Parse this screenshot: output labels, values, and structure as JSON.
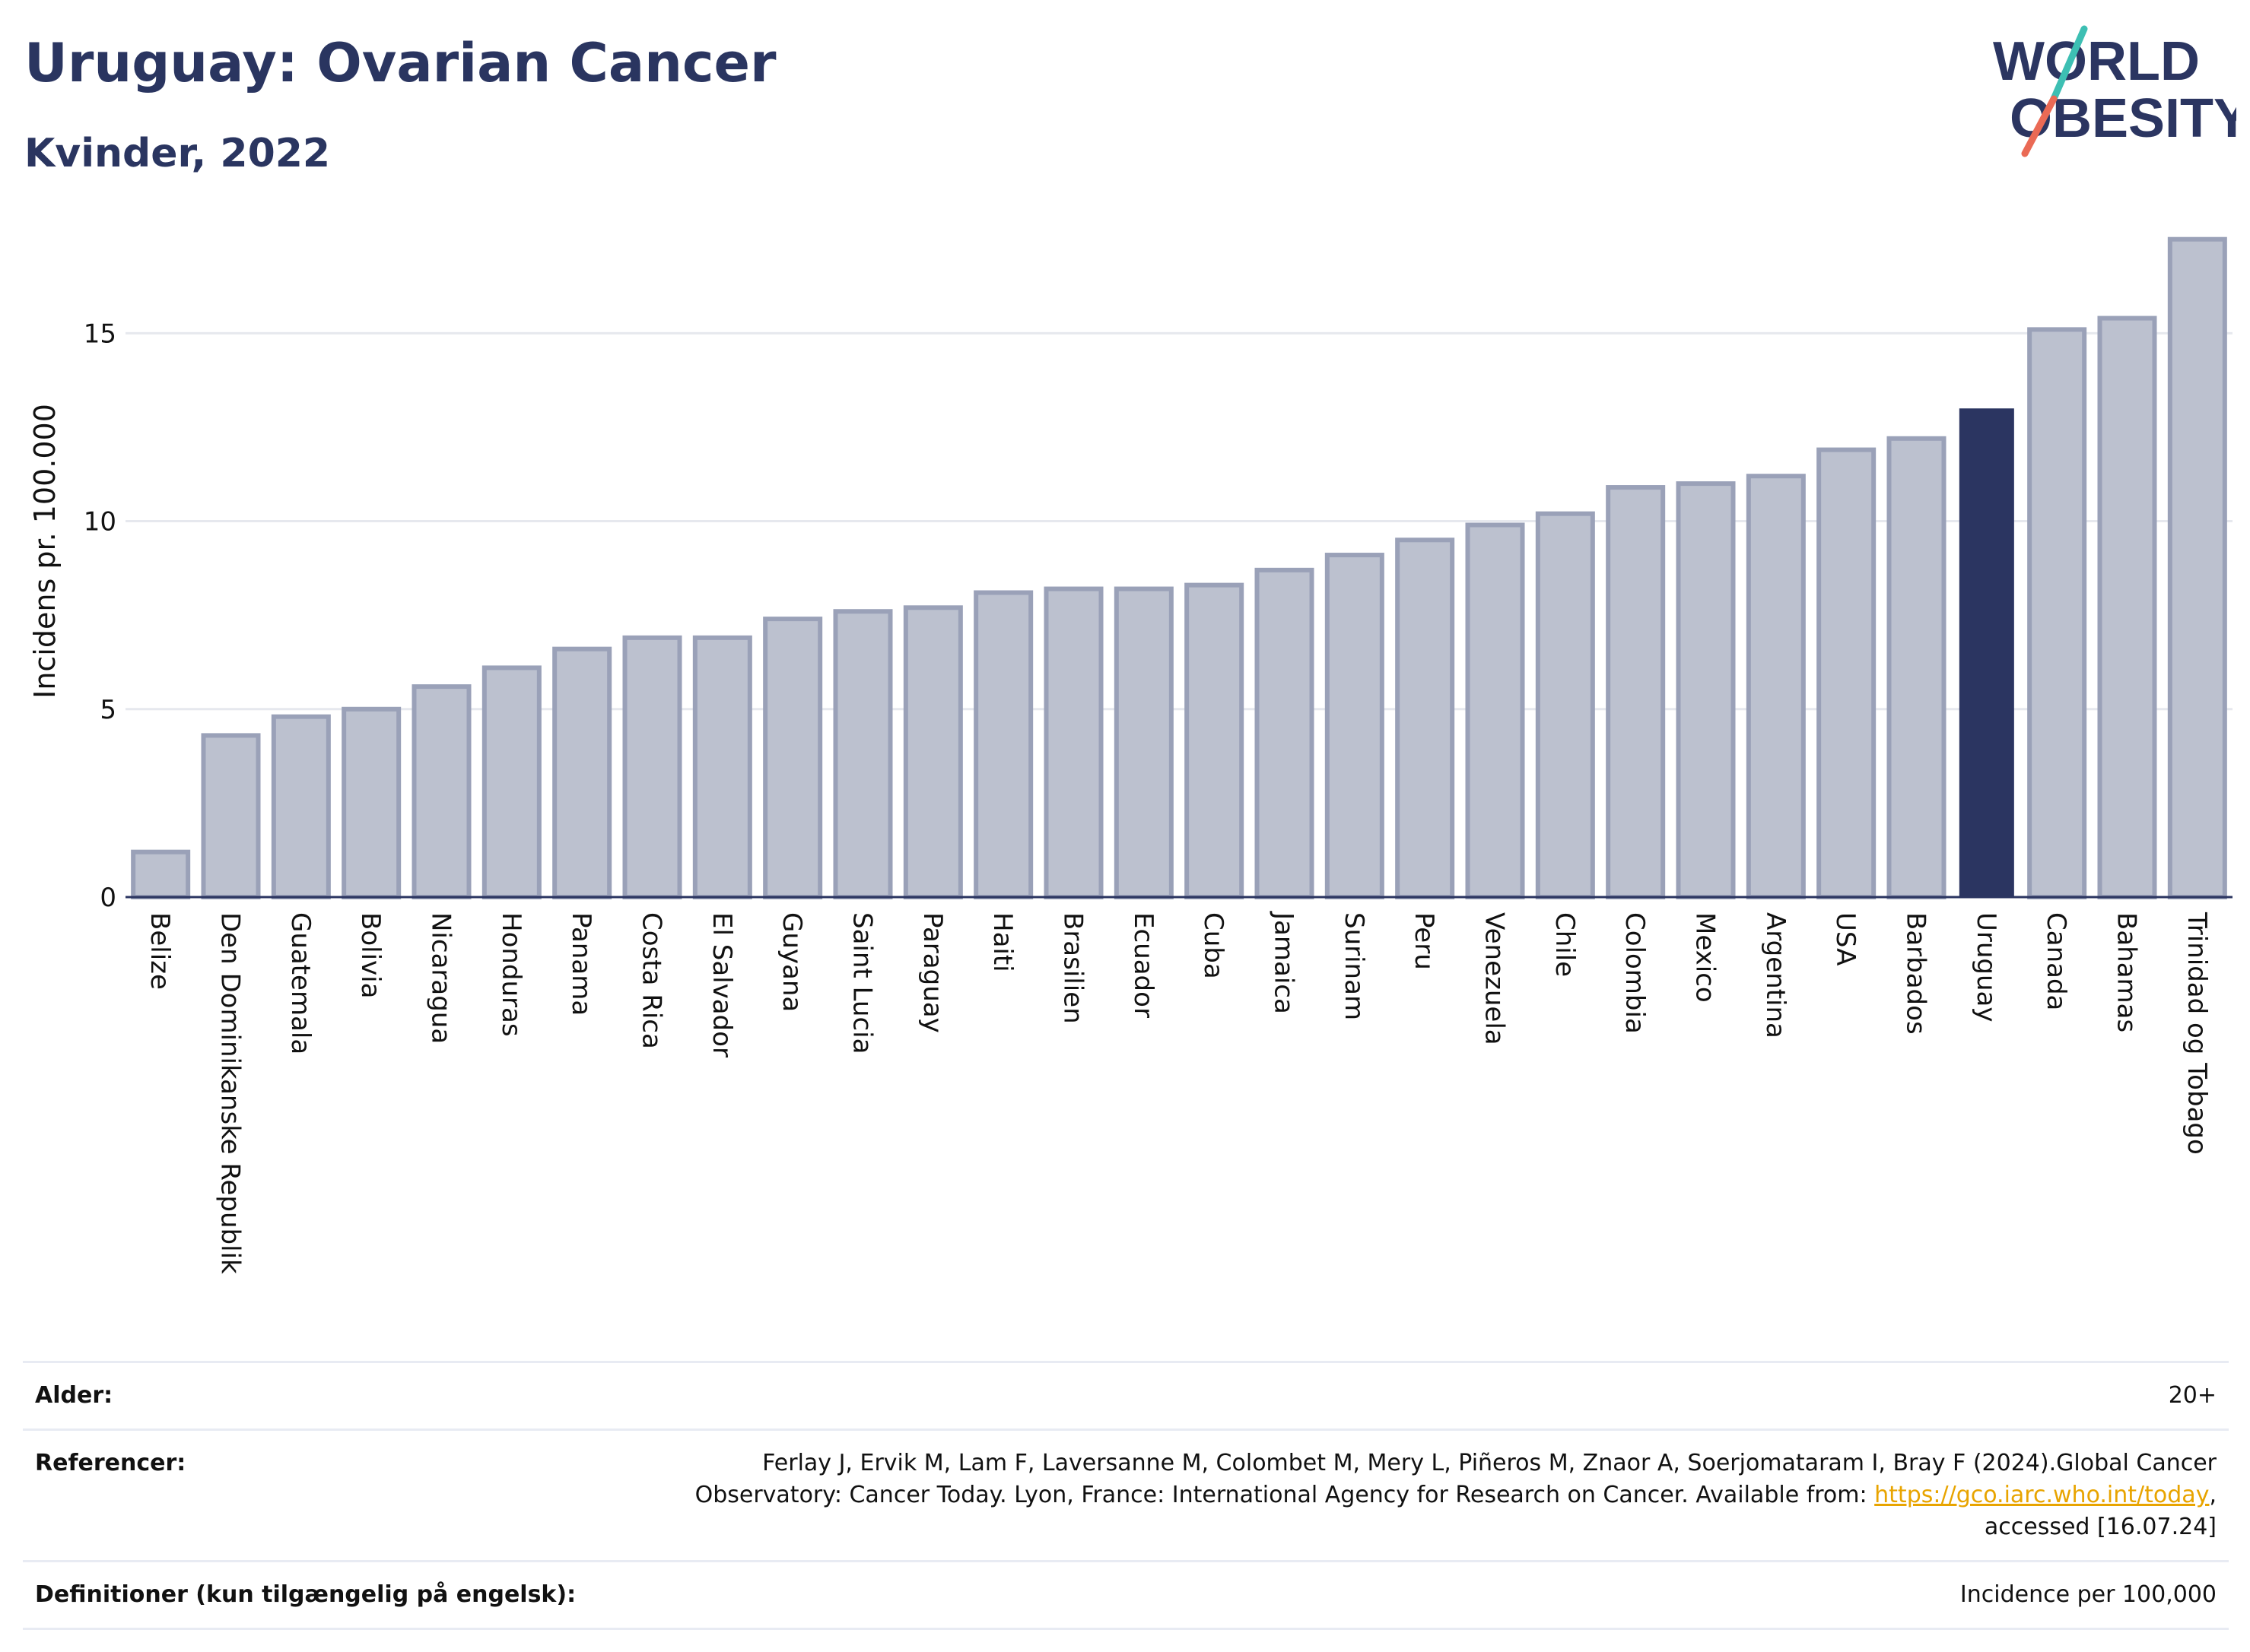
{
  "header": {
    "title": "Uruguay: Ovarian Cancer",
    "subtitle": "Kvinder, 2022"
  },
  "logo": {
    "line1": "WORLD",
    "line2": "OBESITY"
  },
  "chart_data": {
    "type": "bar",
    "title": "Uruguay: Ovarian Cancer",
    "subtitle": "Kvinder, 2022",
    "ylabel": "Incidens pr. 100.000",
    "xlabel": "",
    "ylim": [
      0,
      18
    ],
    "yticks": [
      0,
      5,
      10,
      15
    ],
    "grid": true,
    "highlight": "Uruguay",
    "colors": {
      "bar": "#bcc1cf",
      "bar_edge": "#9aa1b8",
      "highlight": "#2b3561",
      "grid": "#e6e8ee",
      "axis": "#2b3561"
    },
    "categories": [
      "Belize",
      "Den Dominikanske Republik",
      "Guatemala",
      "Bolivia",
      "Nicaragua",
      "Honduras",
      "Panama",
      "Costa Rica",
      "El Salvador",
      "Guyana",
      "Saint Lucia",
      "Paraguay",
      "Haiti",
      "Brasilien",
      "Ecuador",
      "Cuba",
      "Jamaica",
      "Surinam",
      "Peru",
      "Venezuela",
      "Chile",
      "Colombia",
      "Mexico",
      "Argentina",
      "USA",
      "Barbados",
      "Uruguay",
      "Canada",
      "Bahamas",
      "Trinidad og Tobago"
    ],
    "values": [
      1.2,
      4.3,
      4.8,
      5.0,
      5.6,
      6.1,
      6.6,
      6.9,
      6.9,
      7.4,
      7.6,
      7.7,
      8.1,
      8.2,
      8.2,
      8.3,
      8.7,
      9.1,
      9.5,
      9.9,
      10.2,
      10.9,
      11.0,
      11.2,
      11.9,
      12.2,
      13.0,
      15.1,
      15.4,
      17.5
    ]
  },
  "info": {
    "age_label": "Alder:",
    "age_value": "20+",
    "references_label": "Referencer:",
    "references_text": "Ferlay J, Ervik M, Lam F, Laversanne M, Colombet M, Mery L, Piñeros M, Znaor A, Soerjomataram I, Bray F (2024).Global Cancer Observatory: Cancer Today. Lyon, France: International Agency for Research on Cancer. Available from:",
    "references_link": "https://gco.iarc.who.int/today",
    "references_suffix": ", accessed [16.07.24]",
    "definitions_label": "Definitioner (kun tilgængelig på engelsk):",
    "definitions_value": "Incidence per 100,000"
  }
}
